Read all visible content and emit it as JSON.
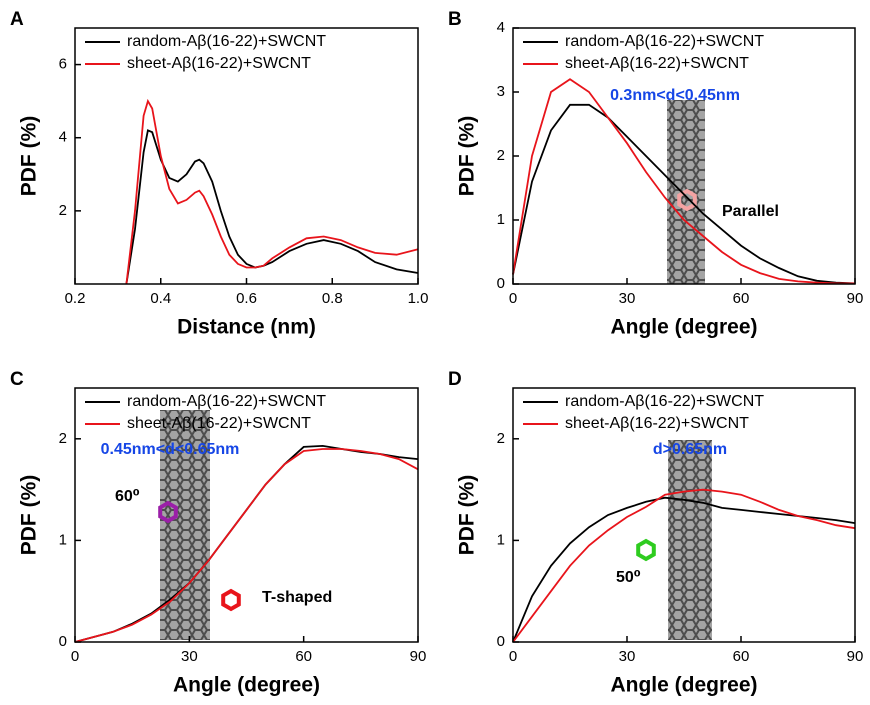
{
  "chart_data": [
    {
      "type": "line",
      "panel": "A",
      "xlabel": "Distance (nm)",
      "ylabel": "PDF (%)",
      "xlim": [
        0.2,
        1.0
      ],
      "ylim": [
        0,
        7
      ],
      "xticks": [
        0.2,
        0.4,
        0.6,
        0.8,
        {
          "value": 1,
          "label": "1.0"
        }
      ],
      "yticks": [
        2,
        4,
        6
      ],
      "x": [
        0.32,
        0.34,
        0.36,
        0.37,
        0.38,
        0.4,
        0.42,
        0.44,
        0.46,
        0.48,
        0.49,
        0.5,
        0.52,
        0.54,
        0.56,
        0.58,
        0.6,
        0.62,
        0.64,
        0.66,
        0.7,
        0.74,
        0.78,
        0.82,
        0.86,
        0.9,
        0.95,
        1.0
      ],
      "series": [
        {
          "name": "random-Aβ(16-22)+SWCNT",
          "color": "#000000",
          "values": [
            0,
            1.5,
            3.6,
            4.2,
            4.15,
            3.4,
            2.9,
            2.8,
            3.0,
            3.35,
            3.4,
            3.3,
            2.8,
            2.0,
            1.3,
            0.8,
            0.55,
            0.45,
            0.5,
            0.6,
            0.9,
            1.1,
            1.2,
            1.1,
            0.9,
            0.6,
            0.4,
            0.3
          ]
        },
        {
          "name": "sheet-Aβ(16-22)+SWCNT",
          "color": "#e8141b",
          "values": [
            0,
            2.0,
            4.6,
            5.0,
            4.8,
            3.5,
            2.6,
            2.2,
            2.3,
            2.5,
            2.55,
            2.4,
            1.9,
            1.3,
            0.8,
            0.55,
            0.45,
            0.45,
            0.5,
            0.7,
            1.0,
            1.25,
            1.3,
            1.2,
            1.0,
            0.85,
            0.8,
            0.95
          ]
        }
      ],
      "annotations": []
    },
    {
      "type": "line",
      "panel": "B",
      "xlabel": "Angle (degree)",
      "ylabel": "PDF (%)",
      "xlim": [
        0,
        90
      ],
      "ylim": [
        0,
        4
      ],
      "xticks": [
        0,
        30,
        60,
        90
      ],
      "yticks": [
        0,
        1,
        2,
        3,
        4
      ],
      "x": [
        0,
        5,
        10,
        15,
        20,
        25,
        30,
        35,
        40,
        45,
        50,
        55,
        60,
        65,
        70,
        75,
        80,
        85,
        90
      ],
      "series": [
        {
          "name": "random-Aβ(16-22)+SWCNT",
          "color": "#000000",
          "values": [
            0.15,
            1.6,
            2.4,
            2.8,
            2.8,
            2.6,
            2.3,
            2.0,
            1.7,
            1.4,
            1.1,
            0.85,
            0.6,
            0.4,
            0.25,
            0.12,
            0.05,
            0.02,
            0.01
          ]
        },
        {
          "name": "sheet-Aβ(16-22)+SWCNT",
          "color": "#e8141b",
          "values": [
            0.15,
            2.0,
            3.0,
            3.2,
            3.0,
            2.6,
            2.2,
            1.75,
            1.35,
            1.0,
            0.75,
            0.5,
            0.3,
            0.17,
            0.08,
            0.04,
            0.02,
            0.01,
            0.01
          ]
        }
      ],
      "annotations": [
        "0.3nm<d<0.45nm",
        "Parallel"
      ]
    },
    {
      "type": "line",
      "panel": "C",
      "xlabel": "Angle (degree)",
      "ylabel": "PDF (%)",
      "xlim": [
        0,
        90
      ],
      "ylim": [
        0,
        2.5
      ],
      "xticks": [
        0,
        30,
        60,
        90
      ],
      "yticks": [
        0,
        1,
        2
      ],
      "x": [
        0,
        5,
        10,
        15,
        20,
        25,
        30,
        35,
        40,
        45,
        50,
        55,
        60,
        65,
        70,
        75,
        80,
        85,
        90
      ],
      "series": [
        {
          "name": "random-Aβ(16-22)+SWCNT",
          "color": "#000000",
          "values": [
            0,
            0.05,
            0.1,
            0.18,
            0.28,
            0.42,
            0.58,
            0.8,
            1.05,
            1.3,
            1.55,
            1.75,
            1.92,
            1.93,
            1.9,
            1.87,
            1.85,
            1.82,
            1.8
          ]
        },
        {
          "name": "sheet-Aβ(16-22)+SWCNT",
          "color": "#e8141b",
          "values": [
            0,
            0.05,
            0.1,
            0.17,
            0.27,
            0.4,
            0.58,
            0.8,
            1.05,
            1.3,
            1.55,
            1.75,
            1.88,
            1.9,
            1.9,
            1.88,
            1.85,
            1.8,
            1.7
          ]
        }
      ],
      "annotations": [
        "0.45nm<d<0.65nm",
        "60⁰",
        "T-shaped"
      ]
    },
    {
      "type": "line",
      "panel": "D",
      "xlabel": "Angle (degree)",
      "ylabel": "PDF (%)",
      "xlim": [
        0,
        90
      ],
      "ylim": [
        0,
        2.5
      ],
      "xticks": [
        0,
        30,
        60,
        90
      ],
      "yticks": [
        0,
        1,
        2
      ],
      "x": [
        0,
        5,
        10,
        15,
        20,
        25,
        30,
        35,
        40,
        45,
        50,
        55,
        60,
        65,
        70,
        75,
        80,
        85,
        90
      ],
      "series": [
        {
          "name": "random-Aβ(16-22)+SWCNT",
          "color": "#000000",
          "values": [
            0,
            0.45,
            0.75,
            0.97,
            1.13,
            1.25,
            1.32,
            1.38,
            1.42,
            1.4,
            1.37,
            1.32,
            1.3,
            1.28,
            1.26,
            1.24,
            1.22,
            1.2,
            1.17
          ]
        },
        {
          "name": "sheet-Aβ(16-22)+SWCNT",
          "color": "#e8141b",
          "values": [
            0,
            0.25,
            0.5,
            0.75,
            0.95,
            1.1,
            1.23,
            1.33,
            1.45,
            1.48,
            1.5,
            1.48,
            1.45,
            1.38,
            1.3,
            1.24,
            1.2,
            1.15,
            1.12
          ]
        }
      ],
      "annotations": [
        "d>0.65nm",
        "50⁰"
      ]
    }
  ]
}
